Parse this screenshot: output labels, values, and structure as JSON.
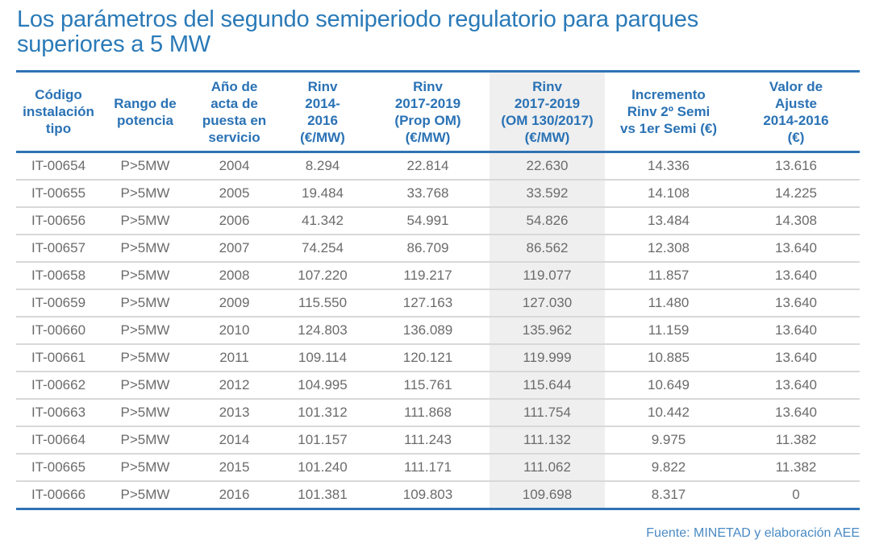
{
  "title": {
    "line1": "Los parámetros del segundo semiperiodo regulatorio para parques",
    "line2": "superiores a 5 MW"
  },
  "table": {
    "headers": [
      [
        "Código",
        "instalación",
        "tipo"
      ],
      [
        "Rango de",
        "potencia"
      ],
      [
        "Año de",
        "acta de",
        "puesta en",
        "servicio"
      ],
      [
        "Rinv",
        "2014-",
        "2016",
        "(€/MW)"
      ],
      [
        "Rinv",
        "2017-2019",
        "(Prop OM)",
        "(€/MW)"
      ],
      [
        "Rinv",
        "2017-2019",
        "(OM 130/2017)",
        "(€/MW)"
      ],
      [
        "Incremento",
        "Rinv 2º Semi",
        "vs 1er Semi (€)"
      ],
      [
        "Valor de",
        "Ajuste",
        "2014-2016",
        "(€)"
      ]
    ],
    "rows": [
      [
        "IT-00654",
        "P>5MW",
        "2004",
        "8.294",
        "22.814",
        "22.630",
        "14.336",
        "13.616"
      ],
      [
        "IT-00655",
        "P>5MW",
        "2005",
        "19.484",
        "33.768",
        "33.592",
        "14.108",
        "14.225"
      ],
      [
        "IT-00656",
        "P>5MW",
        "2006",
        "41.342",
        "54.991",
        "54.826",
        "13.484",
        "14.308"
      ],
      [
        "IT-00657",
        "P>5MW",
        "2007",
        "74.254",
        "86.709",
        "86.562",
        "12.308",
        "13.640"
      ],
      [
        "IT-00658",
        "P>5MW",
        "2008",
        "107.220",
        "119.217",
        "119.077",
        "11.857",
        "13.640"
      ],
      [
        "IT-00659",
        "P>5MW",
        "2009",
        "115.550",
        "127.163",
        "127.030",
        "11.480",
        "13.640"
      ],
      [
        "IT-00660",
        "P>5MW",
        "2010",
        "124.803",
        "136.089",
        "135.962",
        "11.159",
        "13.640"
      ],
      [
        "IT-00661",
        "P>5MW",
        "2011",
        "109.114",
        "120.121",
        "119.999",
        "10.885",
        "13.640"
      ],
      [
        "IT-00662",
        "P>5MW",
        "2012",
        "104.995",
        "115.761",
        "115.644",
        "10.649",
        "13.640"
      ],
      [
        "IT-00663",
        "P>5MW",
        "2013",
        "101.312",
        "111.868",
        "111.754",
        "10.442",
        "13.640"
      ],
      [
        "IT-00664",
        "P>5MW",
        "2014",
        "101.157",
        "111.243",
        "111.132",
        "9.975",
        "11.382"
      ],
      [
        "IT-00665",
        "P>5MW",
        "2015",
        "101.240",
        "111.171",
        "111.062",
        "9.822",
        "11.382"
      ],
      [
        "IT-00666",
        "P>5MW",
        "2016",
        "101.381",
        "109.803",
        "109.698",
        "8.317",
        "0"
      ]
    ],
    "highlighted_column": 5
  },
  "source": "Fuente: MINETAD y elaboración AEE",
  "colors": {
    "accent": "#2a72b5",
    "rule": "#2f73b3",
    "shade": "#efefef",
    "cell_text": "#6b6b6b"
  }
}
